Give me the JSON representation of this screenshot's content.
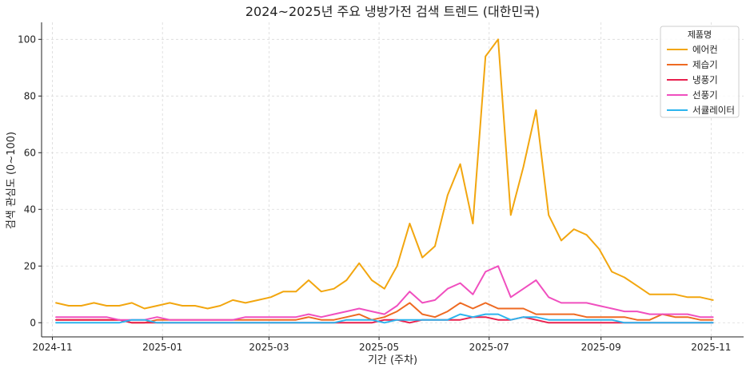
{
  "chart_data": {
    "type": "line",
    "title": "2024~2025년 주요 냉방가전 검색 트렌드 (대한민국)",
    "xlabel": "기간 (주차)",
    "ylabel": "검색 관심도 (0~100)",
    "ylim": [
      -5,
      106
    ],
    "xlim": [
      "2024-10-26",
      "2025-11-19"
    ],
    "grid": true,
    "legend_title": "제품명",
    "legend_position": "top-right",
    "x_ticks": [
      {
        "date": "2024-11-01",
        "label": "2024-11"
      },
      {
        "date": "2025-01-01",
        "label": "2025-01"
      },
      {
        "date": "2025-03-01",
        "label": "2025-03"
      },
      {
        "date": "2025-05-01",
        "label": "2025-05"
      },
      {
        "date": "2025-07-01",
        "label": "2025-07"
      },
      {
        "date": "2025-09-01",
        "label": "2025-09"
      },
      {
        "date": "2025-11-01",
        "label": "2025-11"
      }
    ],
    "y_ticks": [
      0,
      20,
      40,
      60,
      80,
      100
    ],
    "x": [
      "2024-11-03",
      "2024-11-10",
      "2024-11-17",
      "2024-11-24",
      "2024-12-01",
      "2024-12-08",
      "2024-12-15",
      "2024-12-22",
      "2024-12-29",
      "2025-01-05",
      "2025-01-12",
      "2025-01-19",
      "2025-01-26",
      "2025-02-02",
      "2025-02-09",
      "2025-02-16",
      "2025-02-23",
      "2025-03-02",
      "2025-03-09",
      "2025-03-16",
      "2025-03-23",
      "2025-03-30",
      "2025-04-06",
      "2025-04-13",
      "2025-04-20",
      "2025-04-27",
      "2025-05-04",
      "2025-05-11",
      "2025-05-18",
      "2025-05-25",
      "2025-06-01",
      "2025-06-08",
      "2025-06-15",
      "2025-06-22",
      "2025-06-29",
      "2025-07-06",
      "2025-07-13",
      "2025-07-20",
      "2025-07-27",
      "2025-08-03",
      "2025-08-10",
      "2025-08-17",
      "2025-08-24",
      "2025-08-31",
      "2025-09-07",
      "2025-09-14",
      "2025-09-21",
      "2025-09-28",
      "2025-10-05",
      "2025-10-12",
      "2025-10-19",
      "2025-10-26",
      "2025-11-02"
    ],
    "series": [
      {
        "name": "에어컨",
        "color": "#f2a60f",
        "values": [
          7,
          6,
          6,
          7,
          6,
          6,
          7,
          5,
          6,
          7,
          6,
          6,
          5,
          6,
          8,
          7,
          8,
          9,
          11,
          11,
          15,
          11,
          12,
          15,
          21,
          15,
          12,
          20,
          35,
          23,
          27,
          45,
          56,
          35,
          94,
          100,
          38,
          55,
          75,
          38,
          29,
          33,
          31,
          26,
          18,
          16,
          13,
          10,
          10,
          10,
          9,
          9,
          8
        ]
      },
      {
        "name": "제습기",
        "color": "#ee6a22",
        "values": [
          1,
          1,
          1,
          1,
          1,
          1,
          0,
          0,
          1,
          1,
          1,
          1,
          1,
          1,
          1,
          1,
          1,
          1,
          1,
          1,
          2,
          1,
          1,
          2,
          3,
          1,
          2,
          4,
          7,
          3,
          2,
          4,
          7,
          5,
          7,
          5,
          5,
          5,
          3,
          3,
          3,
          3,
          2,
          2,
          2,
          2,
          1,
          1,
          3,
          2,
          2,
          1,
          1
        ]
      },
      {
        "name": "냉풍기",
        "color": "#e8204e",
        "values": [
          1,
          1,
          1,
          1,
          1,
          1,
          0,
          0,
          0,
          0,
          0,
          0,
          0,
          0,
          0,
          0,
          0,
          0,
          0,
          0,
          0,
          0,
          0,
          0,
          0,
          0,
          1,
          1,
          0,
          1,
          1,
          1,
          1,
          2,
          2,
          1,
          1,
          2,
          1,
          0,
          0,
          0,
          0,
          0,
          0,
          0,
          0,
          0,
          0,
          0,
          0,
          0,
          0
        ]
      },
      {
        "name": "선풍기",
        "color": "#f04fbf",
        "values": [
          2,
          2,
          2,
          2,
          2,
          1,
          1,
          1,
          2,
          1,
          1,
          1,
          1,
          1,
          1,
          2,
          2,
          2,
          2,
          2,
          3,
          2,
          3,
          4,
          5,
          4,
          3,
          6,
          11,
          7,
          8,
          12,
          14,
          10,
          18,
          20,
          9,
          12,
          15,
          9,
          7,
          7,
          7,
          6,
          5,
          4,
          4,
          3,
          3,
          3,
          3,
          2,
          2
        ]
      },
      {
        "name": "서큘레이터",
        "color": "#2cb4ee",
        "values": [
          0,
          0,
          0,
          0,
          0,
          0,
          1,
          1,
          0,
          0,
          0,
          0,
          0,
          0,
          0,
          0,
          0,
          0,
          0,
          0,
          0,
          0,
          0,
          1,
          1,
          1,
          0,
          1,
          1,
          1,
          1,
          1,
          3,
          2,
          3,
          3,
          1,
          2,
          2,
          1,
          1,
          1,
          1,
          1,
          1,
          0,
          0,
          0,
          0,
          0,
          0,
          0,
          0
        ]
      }
    ]
  }
}
